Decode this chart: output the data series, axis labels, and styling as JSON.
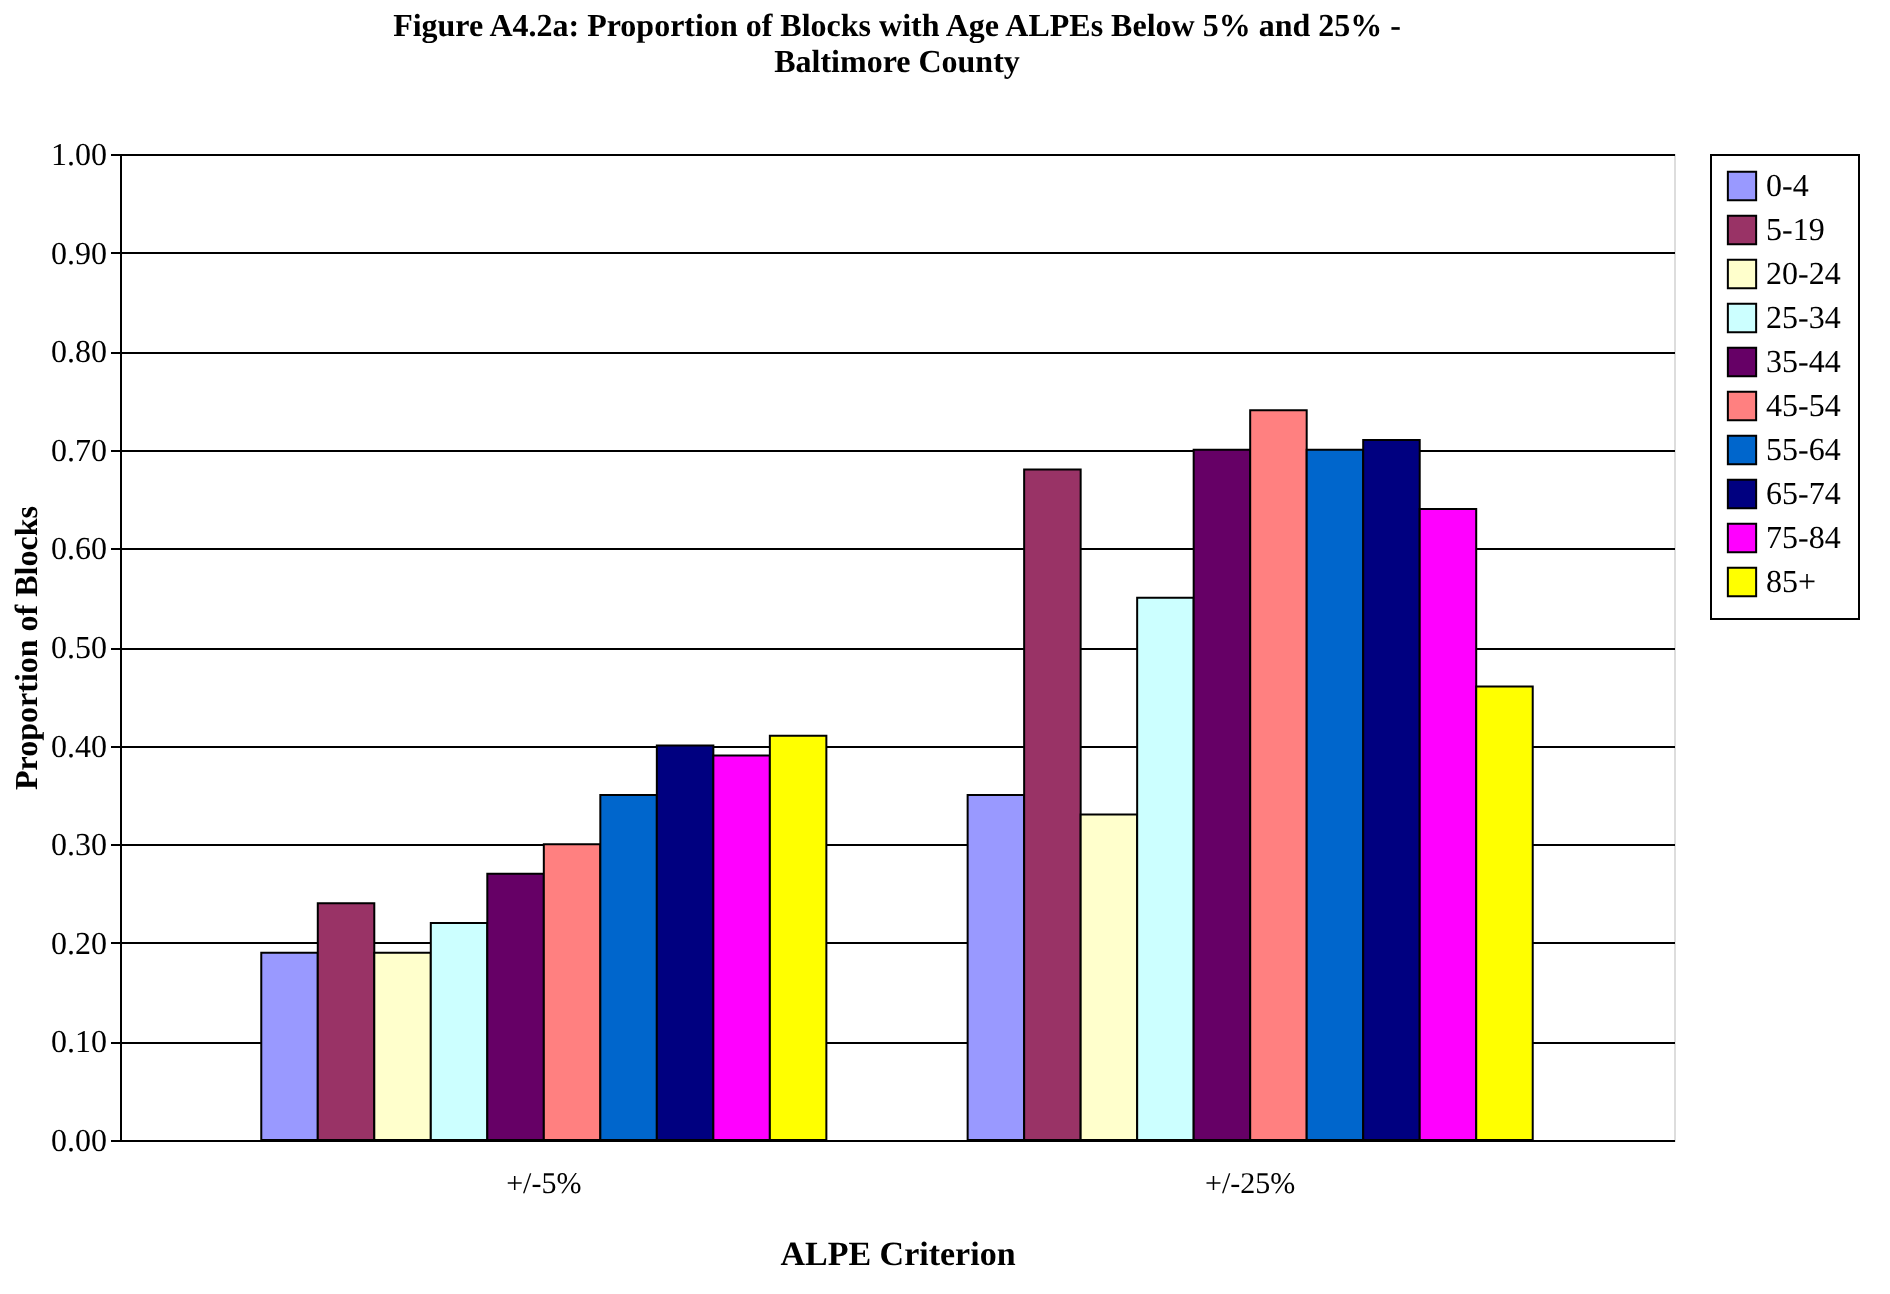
{
  "chart_data": {
    "type": "bar",
    "title": "Figure A4.2a: Proportion of Blocks with Age ALPEs Below 5% and 25% - Baltimore County",
    "xlabel": "ALPE Criterion",
    "ylabel": "Proportion of Blocks",
    "categories": [
      "+/-5%",
      "+/-25%"
    ],
    "series": [
      {
        "name": "0-4",
        "color": "#9999ff",
        "values": [
          0.19,
          0.35
        ]
      },
      {
        "name": "5-19",
        "color": "#993366",
        "values": [
          0.24,
          0.68
        ]
      },
      {
        "name": "20-24",
        "color": "#ffffcc",
        "values": [
          0.19,
          0.33
        ]
      },
      {
        "name": "25-34",
        "color": "#ccffff",
        "values": [
          0.22,
          0.55
        ]
      },
      {
        "name": "35-44",
        "color": "#660066",
        "values": [
          0.27,
          0.7
        ]
      },
      {
        "name": "45-54",
        "color": "#ff8080",
        "values": [
          0.3,
          0.74
        ]
      },
      {
        "name": "55-64",
        "color": "#0066cc",
        "values": [
          0.35,
          0.7
        ]
      },
      {
        "name": "65-74",
        "color": "#000080",
        "values": [
          0.4,
          0.71
        ]
      },
      {
        "name": "75-84",
        "color": "#ff00ff",
        "values": [
          0.39,
          0.64
        ]
      },
      {
        "name": "85+",
        "color": "#ffff00",
        "values": [
          0.41,
          0.46
        ]
      }
    ],
    "ylim": [
      0,
      1.0
    ],
    "yticks": [
      {
        "value": 0,
        "label": "0.00"
      },
      {
        "value": 0.1,
        "label": "0.10"
      },
      {
        "value": 0.2,
        "label": "0.20"
      },
      {
        "value": 0.3,
        "label": "0.30"
      },
      {
        "value": 0.4,
        "label": "0.40"
      },
      {
        "value": 0.5,
        "label": "0.50"
      },
      {
        "value": 0.6,
        "label": "0.60"
      },
      {
        "value": 0.7,
        "label": "0.70"
      },
      {
        "value": 0.8,
        "label": "0.80"
      },
      {
        "value": 0.9,
        "label": "0.90"
      },
      {
        "value": 1.0,
        "label": "1.00"
      }
    ],
    "grid": "y",
    "legend": "right"
  }
}
